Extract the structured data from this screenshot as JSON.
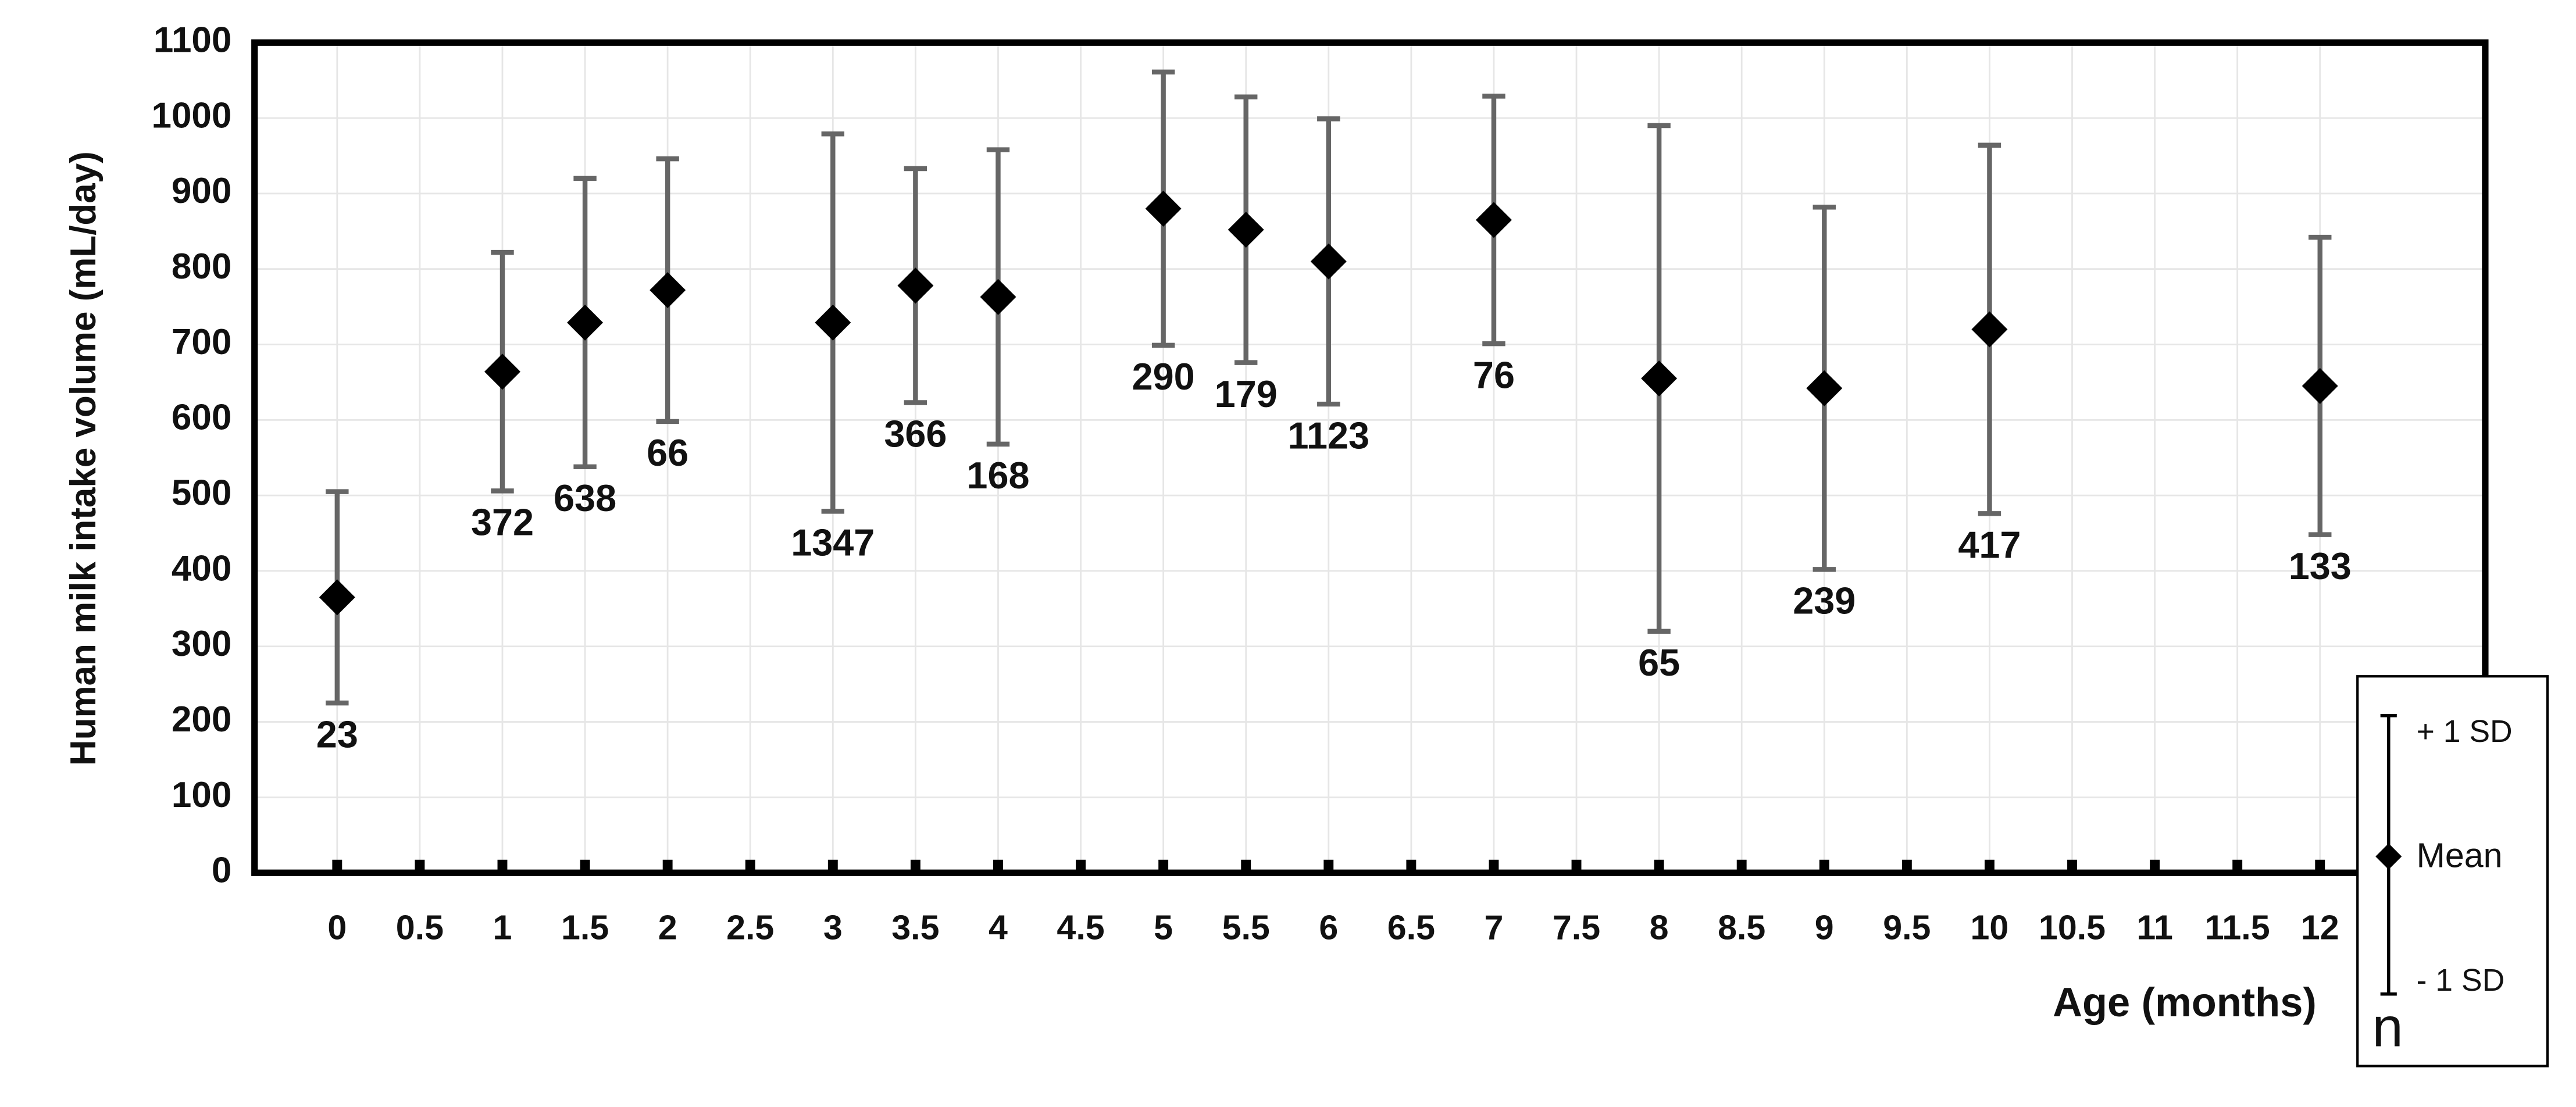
{
  "chart_data": {
    "type": "errorbar",
    "x_label": "Age (months)",
    "y_label": "Human milk intake volume (mL/day)",
    "xlim": [
      -0.5,
      13
    ],
    "ylim": [
      0,
      1100
    ],
    "xticks": [
      0,
      0.5,
      1,
      1.5,
      2,
      2.5,
      3,
      3.5,
      4,
      4.5,
      5,
      5.5,
      6,
      6.5,
      7,
      7.5,
      8,
      8.5,
      9,
      9.5,
      10,
      10.5,
      11,
      11.5,
      12
    ],
    "yticks": [
      0,
      100,
      200,
      300,
      400,
      500,
      600,
      700,
      800,
      900,
      1000,
      1100
    ],
    "grid": true,
    "series": [
      {
        "color": "#000000",
        "error_color": "#666666",
        "x": [
          0,
          1,
          1.5,
          2,
          3,
          3.5,
          4,
          5,
          5.5,
          6,
          7,
          8,
          9,
          10,
          12
        ],
        "values": [
          365,
          664,
          729,
          772,
          729,
          778,
          763,
          880,
          852,
          810,
          865,
          655,
          642,
          720,
          645
        ],
        "errors": [
          140,
          158,
          191,
          174,
          250,
          155,
          195,
          181,
          176,
          189,
          164,
          335,
          240,
          244,
          197
        ],
        "n": [
          23,
          372,
          638,
          66,
          1347,
          366,
          168,
          290,
          179,
          1123,
          76,
          65,
          239,
          417,
          133
        ]
      }
    ],
    "legend": {
      "upper": "+ 1 SD",
      "mean": "Mean",
      "lower": "- 1 SD",
      "n": "n"
    }
  }
}
